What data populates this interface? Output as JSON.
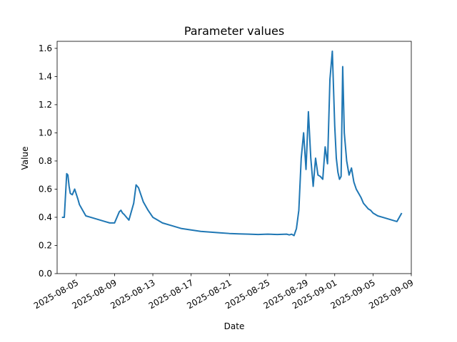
{
  "chart_data": {
    "type": "line",
    "title": "Parameter values",
    "xlabel": "Date",
    "ylabel": "Value",
    "xlim": [
      "2025-08-03",
      "2025-09-09"
    ],
    "ylim": [
      0,
      1.65
    ],
    "x_ticks": [
      "2025-08-05",
      "2025-08-09",
      "2025-08-13",
      "2025-08-17",
      "2025-08-21",
      "2025-08-25",
      "2025-08-29",
      "2025-09-01",
      "2025-09-05",
      "2025-09-09"
    ],
    "y_ticks": [
      "0.0",
      "0.2",
      "0.4",
      "0.6",
      "0.8",
      "1.0",
      "1.2",
      "1.4",
      "1.6"
    ],
    "grid": false,
    "line_color": "#1f77b4",
    "series": [
      {
        "x": [
          "2025-08-03 12:00",
          "2025-08-03 18:00",
          "2025-08-04 00:00",
          "2025-08-04 03:00",
          "2025-08-04 06:00",
          "2025-08-04 09:00",
          "2025-08-04 14:00",
          "2025-08-04 20:00",
          "2025-08-05 04:00",
          "2025-08-05 08:00",
          "2025-08-05 12:00",
          "2025-08-05 16:00",
          "2025-08-06 00:00",
          "2025-08-06 12:00",
          "2025-08-07 00:00",
          "2025-08-07 12:00",
          "2025-08-08 00:00",
          "2025-08-08 12:00",
          "2025-08-09 00:00",
          "2025-08-09 12:00",
          "2025-08-09 16:00",
          "2025-08-09 20:00",
          "2025-08-10 00:00",
          "2025-08-10 06:00",
          "2025-08-10 12:00",
          "2025-08-11 00:00",
          "2025-08-11 06:00",
          "2025-08-11 12:00",
          "2025-08-11 18:00",
          "2025-08-12 00:00",
          "2025-08-12 12:00",
          "2025-08-13 00:00",
          "2025-08-13 12:00",
          "2025-08-14 00:00",
          "2025-08-15 00:00",
          "2025-08-16 00:00",
          "2025-08-17 00:00",
          "2025-08-18 00:00",
          "2025-08-19 00:00",
          "2025-08-20 00:00",
          "2025-08-21 00:00",
          "2025-08-22 00:00",
          "2025-08-23 00:00",
          "2025-08-24 00:00",
          "2025-08-25 00:00",
          "2025-08-26 00:00",
          "2025-08-27 00:00",
          "2025-08-27 06:00",
          "2025-08-27 12:00",
          "2025-08-27 18:00",
          "2025-08-28 00:00",
          "2025-08-28 06:00",
          "2025-08-28 12:00",
          "2025-08-28 18:00",
          "2025-08-29 00:00",
          "2025-08-29 06:00",
          "2025-08-29 12:00",
          "2025-08-29 18:00",
          "2025-08-30 00:00",
          "2025-08-30 06:00",
          "2025-08-30 12:00",
          "2025-08-30 18:00",
          "2025-08-31 00:00",
          "2025-08-31 06:00",
          "2025-08-31 12:00",
          "2025-08-31 18:00",
          "2025-09-01 00:00",
          "2025-09-01 04:00",
          "2025-09-01 08:00",
          "2025-09-01 12:00",
          "2025-09-01 16:00",
          "2025-09-01 20:00",
          "2025-09-02 00:00",
          "2025-09-02 06:00",
          "2025-09-02 12:00",
          "2025-09-02 18:00",
          "2025-09-03 00:00",
          "2025-09-03 06:00",
          "2025-09-03 12:00",
          "2025-09-03 18:00",
          "2025-09-04 00:00",
          "2025-09-04 06:00",
          "2025-09-04 12:00",
          "2025-09-04 18:00",
          "2025-09-05 00:00",
          "2025-09-05 12:00",
          "2025-09-06 00:00",
          "2025-09-06 12:00",
          "2025-09-07 00:00",
          "2025-09-07 12:00",
          "2025-09-08 00:00"
        ],
        "y": [
          0.4,
          0.4,
          0.71,
          0.7,
          0.62,
          0.57,
          0.56,
          0.6,
          0.53,
          0.49,
          0.47,
          0.45,
          0.41,
          0.4,
          0.39,
          0.38,
          0.37,
          0.36,
          0.36,
          0.44,
          0.45,
          0.43,
          0.42,
          0.4,
          0.38,
          0.5,
          0.63,
          0.61,
          0.56,
          0.51,
          0.45,
          0.4,
          0.38,
          0.36,
          0.34,
          0.32,
          0.31,
          0.3,
          0.295,
          0.29,
          0.285,
          0.282,
          0.28,
          0.278,
          0.28,
          0.278,
          0.28,
          0.275,
          0.28,
          0.27,
          0.32,
          0.45,
          0.82,
          1.0,
          0.74,
          1.15,
          0.82,
          0.62,
          0.82,
          0.7,
          0.69,
          0.67,
          0.9,
          0.78,
          1.38,
          1.58,
          1.05,
          0.82,
          0.72,
          0.67,
          0.69,
          1.47,
          1.0,
          0.8,
          0.7,
          0.75,
          0.65,
          0.6,
          0.57,
          0.54,
          0.5,
          0.48,
          0.46,
          0.45,
          0.43,
          0.41,
          0.4,
          0.39,
          0.38,
          0.37,
          0.43
        ]
      }
    ]
  }
}
